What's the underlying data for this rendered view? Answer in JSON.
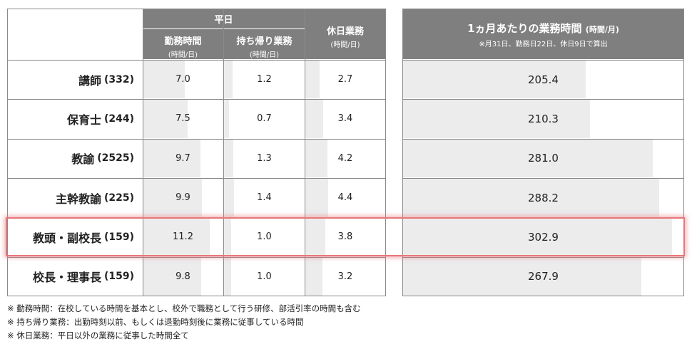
{
  "headers": {
    "weekday": "平日",
    "work": "勤務時間",
    "work_unit": "(時間/日)",
    "takehome": "持ち帰り業務",
    "takehome_unit": "(時間/日)",
    "holiday": "休日業務",
    "holiday_unit": "(時間/日)",
    "monthly": "1ヵ月あたりの業務時間",
    "monthly_unit": "(時間/月)",
    "monthly_note": "※月31日、勤務日22日、休日9日で算出"
  },
  "chart_data": {
    "type": "table",
    "columns": [
      "勤務時間",
      "持ち帰り業務",
      "休日業務",
      "1ヵ月あたりの業務時間"
    ],
    "rows": [
      {
        "label": "講師",
        "count": "(332)",
        "work": "7.0",
        "takehome": "1.2",
        "holiday": "2.7",
        "monthly": "205.4"
      },
      {
        "label": "保育士",
        "count": "(244)",
        "work": "7.5",
        "takehome": "0.7",
        "holiday": "3.4",
        "monthly": "210.3"
      },
      {
        "label": "教諭",
        "count": "(2525)",
        "work": "9.7",
        "takehome": "1.3",
        "holiday": "4.2",
        "monthly": "281.0"
      },
      {
        "label": "主幹教諭",
        "count": "(225)",
        "work": "9.9",
        "takehome": "1.4",
        "holiday": "4.4",
        "monthly": "288.2"
      },
      {
        "label": "教頭・副校長",
        "count": "(159)",
        "work": "11.2",
        "takehome": "1.0",
        "holiday": "3.8",
        "monthly": "302.9"
      },
      {
        "label": "校長・理事長",
        "count": "(159)",
        "work": "9.8",
        "takehome": "1.0",
        "holiday": "3.2",
        "monthly": "267.9"
      }
    ],
    "highlighted_row": "教頭・副校長",
    "bar_scale_max": {
      "work": 11.2,
      "takehome": 1.4,
      "holiday": 4.4,
      "monthly": 302.9
    },
    "highlight_color": "#e8777a",
    "bar_color": "#ececec",
    "header_color": "#7f7f7f"
  },
  "notes": [
    "※ 勤務時間：在校している時間を基本とし、校外で職務として行う研修、部活引率の時間も含む",
    "※ 持ち帰り業務：出勤時刻以前、もしくは退勤時刻後に業務に従事している時間",
    "※ 休日業務：平日以外の業務に従事した時間全て"
  ]
}
